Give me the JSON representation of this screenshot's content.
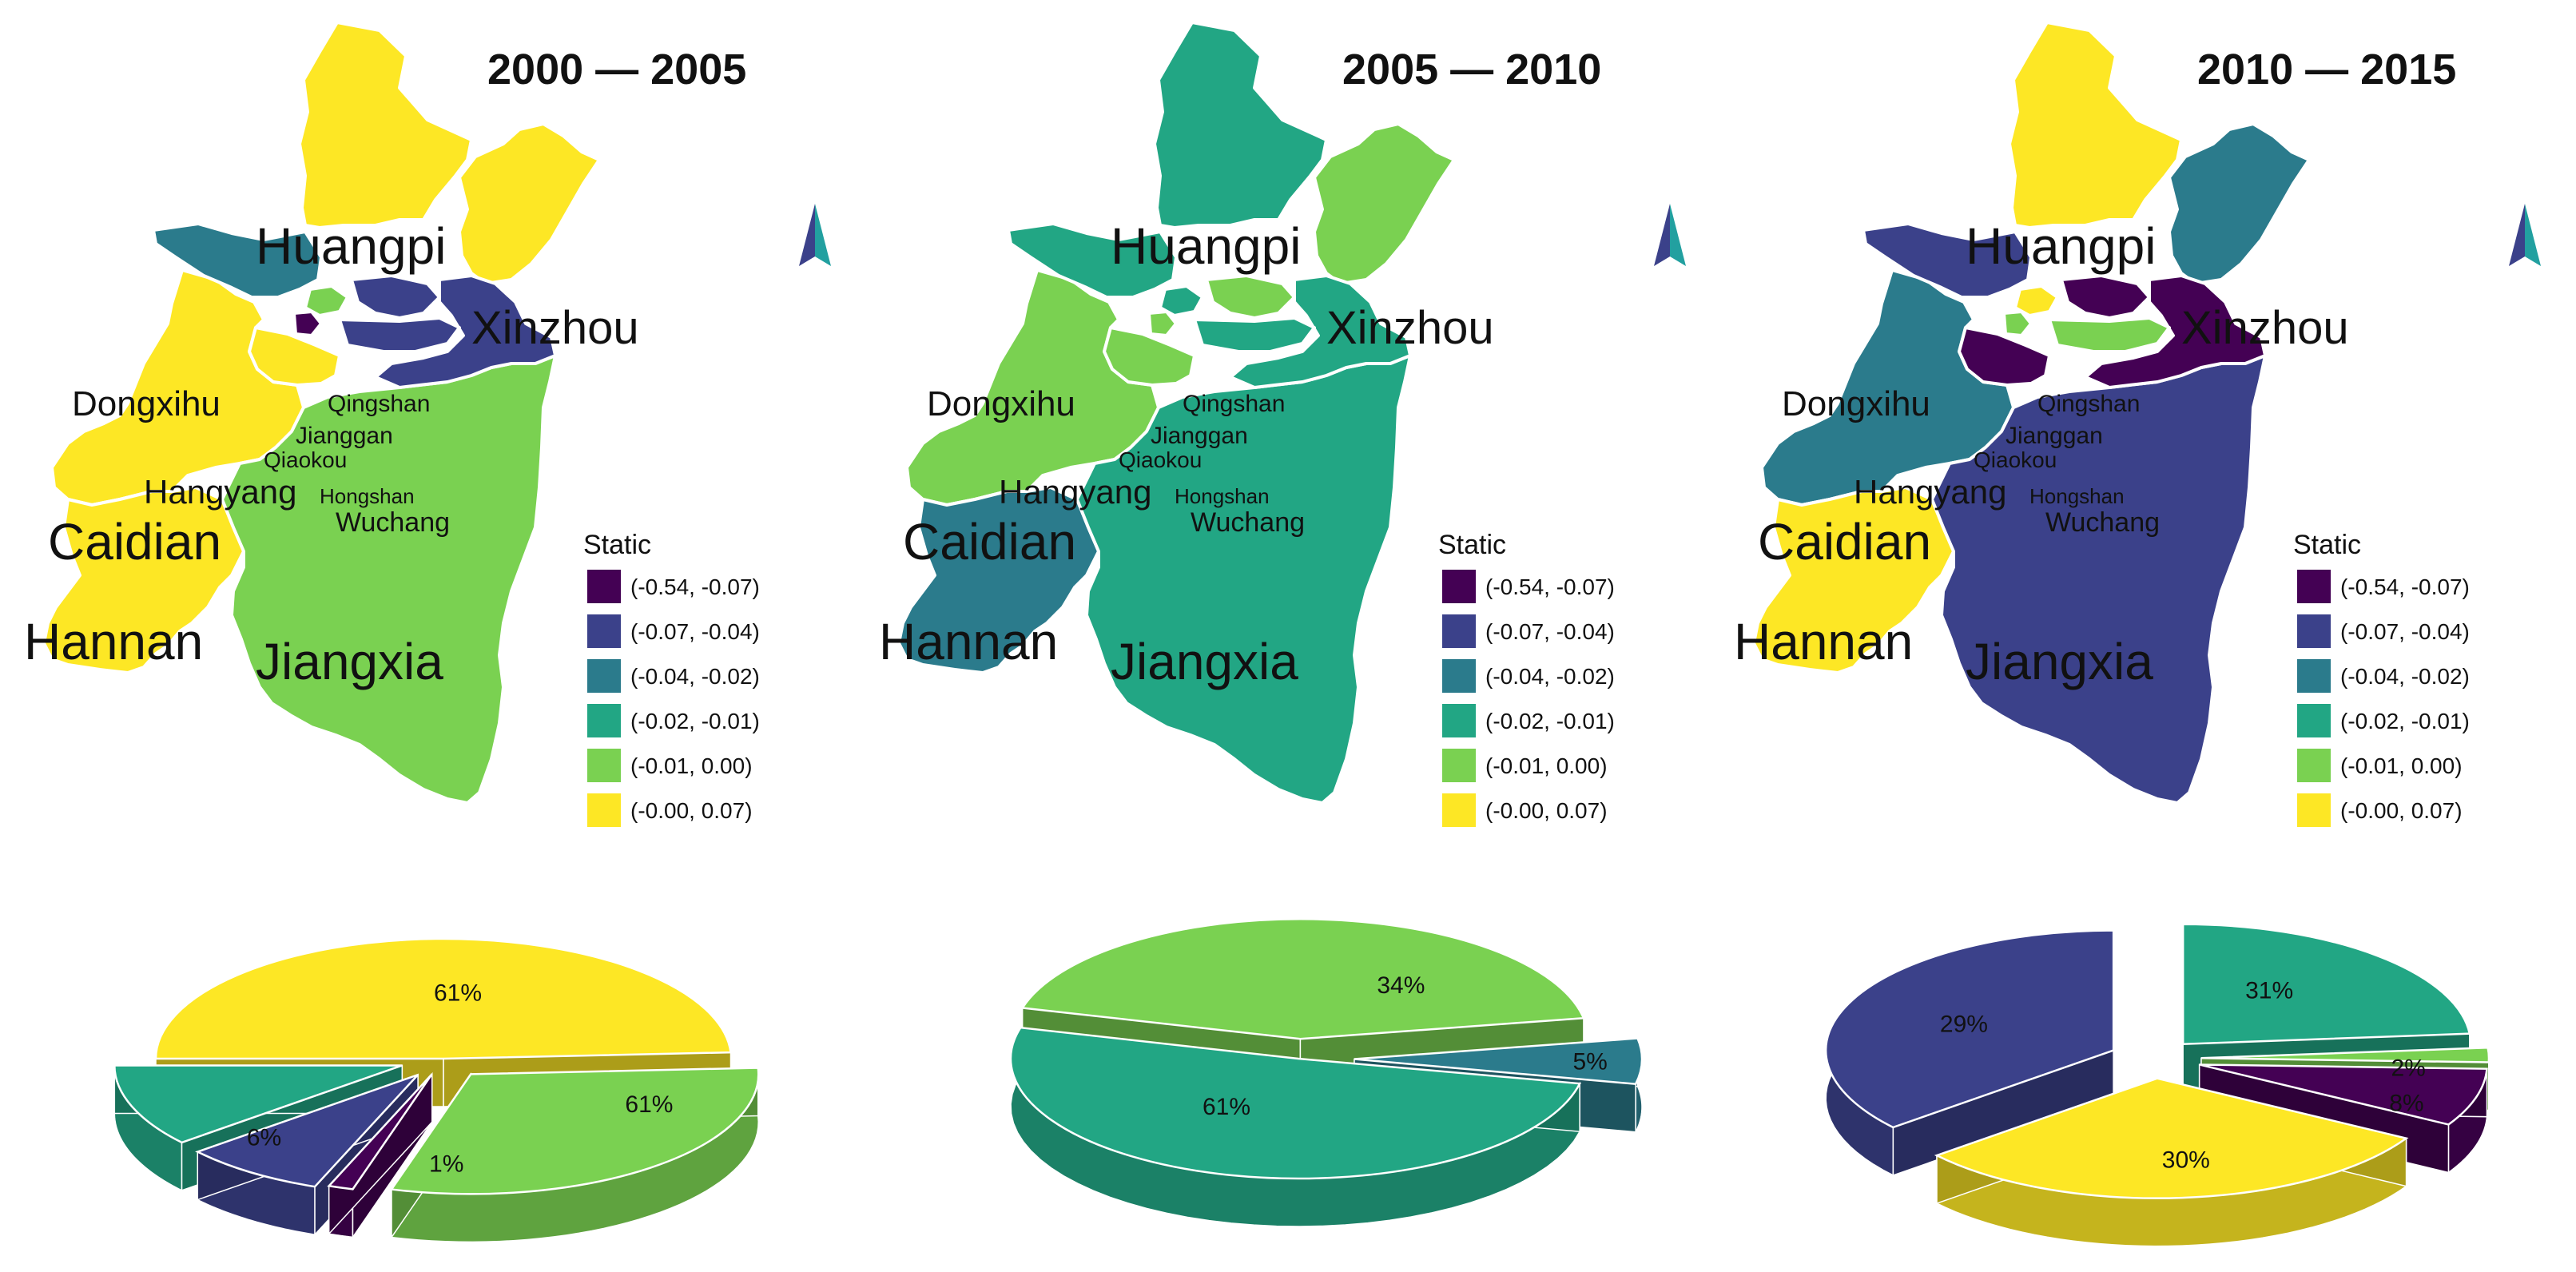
{
  "palette": {
    "c1": "#440154",
    "c2": "#3b418a",
    "c3": "#2b7b8c",
    "c4": "#22a684",
    "c5": "#7ad151",
    "c6": "#fde725"
  },
  "legend": {
    "title": "Static",
    "classes": [
      {
        "key": "c1",
        "label": "(-0.54,  -0.07)"
      },
      {
        "key": "c2",
        "label": "(-0.07,  -0.04)"
      },
      {
        "key": "c3",
        "label": "(-0.04,  -0.02)"
      },
      {
        "key": "c4",
        "label": "(-0.02,  -0.01)"
      },
      {
        "key": "c5",
        "label": "(-0.01,  0.00)"
      },
      {
        "key": "c6",
        "label": "(-0.00,  0.07)"
      }
    ]
  },
  "districts": [
    "Huangpi",
    "Xinzhou",
    "Dongxihu",
    "Qingshan",
    "Jianggan",
    "Qiaokou",
    "Hangyang",
    "Hongshan",
    "Wuchang",
    "Caidian",
    "Hannan",
    "Jiangxia"
  ],
  "panels": [
    {
      "title": "2000 — 2005",
      "fills": {
        "Huangpi": "c6",
        "Xinzhou": "c6",
        "Dongxihu": "c3",
        "Qingshan": "c2",
        "Jianggan": "c5",
        "Qiaokou": "c1",
        "Hangyang": "c6",
        "Hongshan": "c2",
        "Wuchang": "c2",
        "Caidian": "c6",
        "Hannan": "c6",
        "Jiangxia": "c5"
      },
      "pie": [
        {
          "key": "c6",
          "label": "61%"
        },
        {
          "key": "c5",
          "label": "61%"
        },
        {
          "key": "c1",
          "label": "1%"
        },
        {
          "key": "c2",
          "label": ""
        },
        {
          "key": "c4",
          "label": "6%"
        }
      ]
    },
    {
      "title": "2005 — 2010",
      "fills": {
        "Huangpi": "c4",
        "Xinzhou": "c5",
        "Dongxihu": "c4",
        "Qingshan": "c5",
        "Jianggan": "c4",
        "Qiaokou": "c5",
        "Hangyang": "c5",
        "Hongshan": "c4",
        "Wuchang": "c4",
        "Caidian": "c5",
        "Hannan": "c3",
        "Jiangxia": "c4"
      },
      "pie": [
        {
          "key": "c5",
          "label": "34%"
        },
        {
          "key": "c3",
          "label": "5%"
        },
        {
          "key": "c4",
          "label": "61%"
        }
      ]
    },
    {
      "title": "2010 — 2015",
      "fills": {
        "Huangpi": "c6",
        "Xinzhou": "c3",
        "Dongxihu": "c2",
        "Qingshan": "c1",
        "Jianggan": "c6",
        "Qiaokou": "c5",
        "Hangyang": "c1",
        "Hongshan": "c5",
        "Wuchang": "c1",
        "Caidian": "c3",
        "Hannan": "c6",
        "Jiangxia": "c2"
      },
      "pie": [
        {
          "key": "c4",
          "label": "31%"
        },
        {
          "key": "c5",
          "label": "2%"
        },
        {
          "key": "c1",
          "label": "8%"
        },
        {
          "key": "c6",
          "label": "30%"
        },
        {
          "key": "c2",
          "label": "29%"
        }
      ]
    }
  ],
  "north_arrow_icon": "north-arrow-icon"
}
